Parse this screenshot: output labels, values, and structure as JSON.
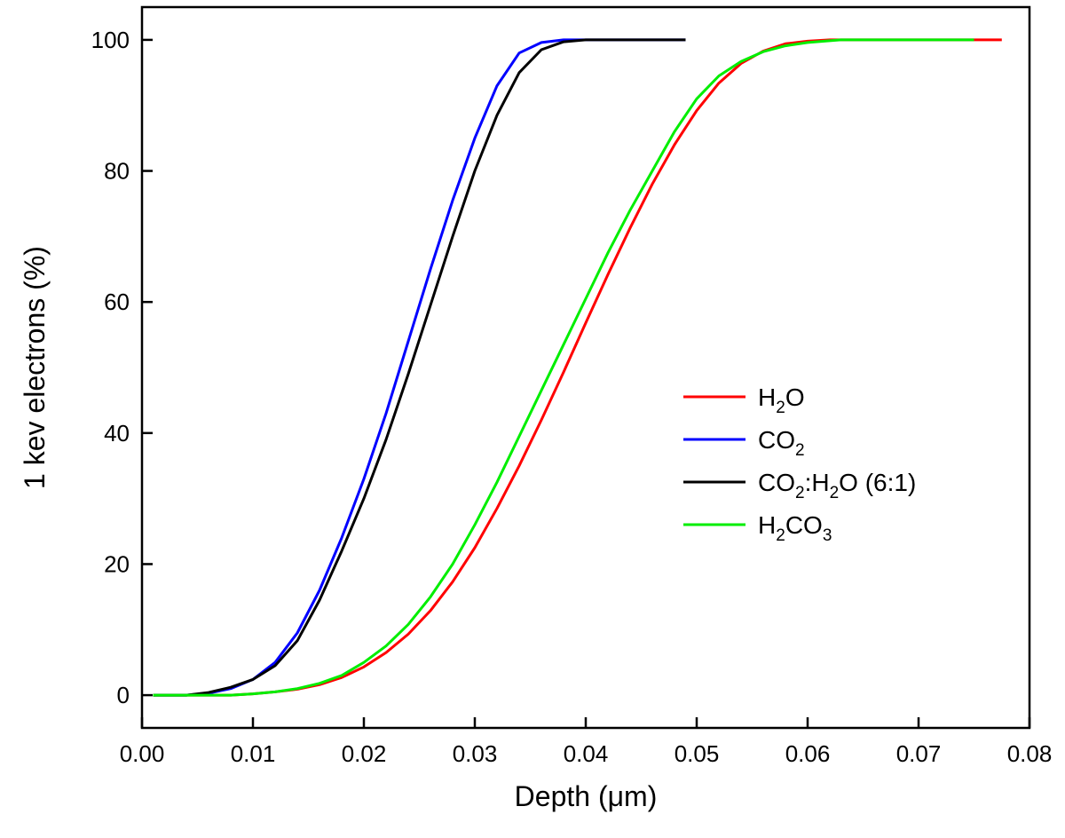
{
  "chart_data": {
    "type": "line",
    "title": "",
    "xlabel": "Depth (μm)",
    "ylabel": "1 kev electrons (%)",
    "xlim": [
      0.0,
      0.08
    ],
    "ylim": [
      -5,
      105
    ],
    "x_ticks": [
      "0.00",
      "0.01",
      "0.02",
      "0.03",
      "0.04",
      "0.05",
      "0.06",
      "0.07",
      "0.08"
    ],
    "y_ticks": [
      "0",
      "20",
      "40",
      "60",
      "80",
      "100"
    ],
    "legend_position": "center-right",
    "series": [
      {
        "name": "H2O",
        "label_parts": [
          {
            "t": "H"
          },
          {
            "t": "2",
            "sub": true
          },
          {
            "t": "O"
          }
        ],
        "color": "#ff0000",
        "points": [
          [
            0.001,
            0
          ],
          [
            0.008,
            0
          ],
          [
            0.01,
            0.2
          ],
          [
            0.012,
            0.5
          ],
          [
            0.014,
            0.9
          ],
          [
            0.016,
            1.6
          ],
          [
            0.018,
            2.7
          ],
          [
            0.02,
            4.3
          ],
          [
            0.022,
            6.5
          ],
          [
            0.024,
            9.3
          ],
          [
            0.026,
            12.9
          ],
          [
            0.028,
            17.3
          ],
          [
            0.03,
            22.5
          ],
          [
            0.032,
            28.5
          ],
          [
            0.034,
            35.0
          ],
          [
            0.036,
            42.0
          ],
          [
            0.038,
            49.3
          ],
          [
            0.04,
            56.8
          ],
          [
            0.042,
            64.2
          ],
          [
            0.044,
            71.3
          ],
          [
            0.046,
            78.0
          ],
          [
            0.048,
            84.0
          ],
          [
            0.05,
            89.2
          ],
          [
            0.052,
            93.4
          ],
          [
            0.054,
            96.4
          ],
          [
            0.056,
            98.3
          ],
          [
            0.058,
            99.4
          ],
          [
            0.06,
            99.8
          ],
          [
            0.062,
            100
          ],
          [
            0.0775,
            100
          ]
        ]
      },
      {
        "name": "CO2",
        "label_parts": [
          {
            "t": "CO"
          },
          {
            "t": "2",
            "sub": true
          }
        ],
        "color": "#0000ff",
        "points": [
          [
            0.001,
            0
          ],
          [
            0.004,
            0
          ],
          [
            0.006,
            0.3
          ],
          [
            0.008,
            1.0
          ],
          [
            0.01,
            2.4
          ],
          [
            0.012,
            5.0
          ],
          [
            0.014,
            9.5
          ],
          [
            0.016,
            16.0
          ],
          [
            0.018,
            24.0
          ],
          [
            0.02,
            33.0
          ],
          [
            0.022,
            43.0
          ],
          [
            0.024,
            54.0
          ],
          [
            0.026,
            65.0
          ],
          [
            0.028,
            75.5
          ],
          [
            0.03,
            85.0
          ],
          [
            0.032,
            93.0
          ],
          [
            0.034,
            98.0
          ],
          [
            0.036,
            99.6
          ],
          [
            0.038,
            100
          ],
          [
            0.049,
            100
          ]
        ]
      },
      {
        "name": "CO2:H2O (6:1)",
        "label_parts": [
          {
            "t": "CO"
          },
          {
            "t": "2",
            "sub": true
          },
          {
            "t": ":H"
          },
          {
            "t": "2",
            "sub": true
          },
          {
            "t": "O (6:1)"
          }
        ],
        "color": "#000000",
        "points": [
          [
            0.001,
            0
          ],
          [
            0.004,
            0
          ],
          [
            0.006,
            0.4
          ],
          [
            0.008,
            1.2
          ],
          [
            0.01,
            2.4
          ],
          [
            0.012,
            4.5
          ],
          [
            0.014,
            8.3
          ],
          [
            0.016,
            14.5
          ],
          [
            0.018,
            22.0
          ],
          [
            0.02,
            30.0
          ],
          [
            0.022,
            39.0
          ],
          [
            0.024,
            49.0
          ],
          [
            0.026,
            59.5
          ],
          [
            0.028,
            70.0
          ],
          [
            0.03,
            80.0
          ],
          [
            0.032,
            88.5
          ],
          [
            0.034,
            95.0
          ],
          [
            0.036,
            98.5
          ],
          [
            0.038,
            99.7
          ],
          [
            0.04,
            100
          ],
          [
            0.049,
            100
          ]
        ]
      },
      {
        "name": "H2CO3",
        "label_parts": [
          {
            "t": "H"
          },
          {
            "t": "2",
            "sub": true
          },
          {
            "t": "CO"
          },
          {
            "t": "3",
            "sub": true
          }
        ],
        "color": "#00ee00",
        "points": [
          [
            0.001,
            0
          ],
          [
            0.008,
            0
          ],
          [
            0.01,
            0.2
          ],
          [
            0.012,
            0.5
          ],
          [
            0.014,
            1.0
          ],
          [
            0.016,
            1.8
          ],
          [
            0.018,
            3.0
          ],
          [
            0.02,
            5.0
          ],
          [
            0.022,
            7.5
          ],
          [
            0.024,
            10.8
          ],
          [
            0.026,
            15.0
          ],
          [
            0.028,
            20.0
          ],
          [
            0.03,
            26.0
          ],
          [
            0.032,
            32.5
          ],
          [
            0.034,
            39.5
          ],
          [
            0.036,
            46.5
          ],
          [
            0.038,
            53.5
          ],
          [
            0.04,
            60.5
          ],
          [
            0.042,
            67.5
          ],
          [
            0.044,
            74.0
          ],
          [
            0.046,
            80.0
          ],
          [
            0.048,
            86.0
          ],
          [
            0.05,
            91.0
          ],
          [
            0.052,
            94.5
          ],
          [
            0.054,
            96.7
          ],
          [
            0.056,
            98.2
          ],
          [
            0.058,
            99.1
          ],
          [
            0.06,
            99.6
          ],
          [
            0.063,
            100
          ],
          [
            0.075,
            100
          ]
        ]
      }
    ]
  }
}
